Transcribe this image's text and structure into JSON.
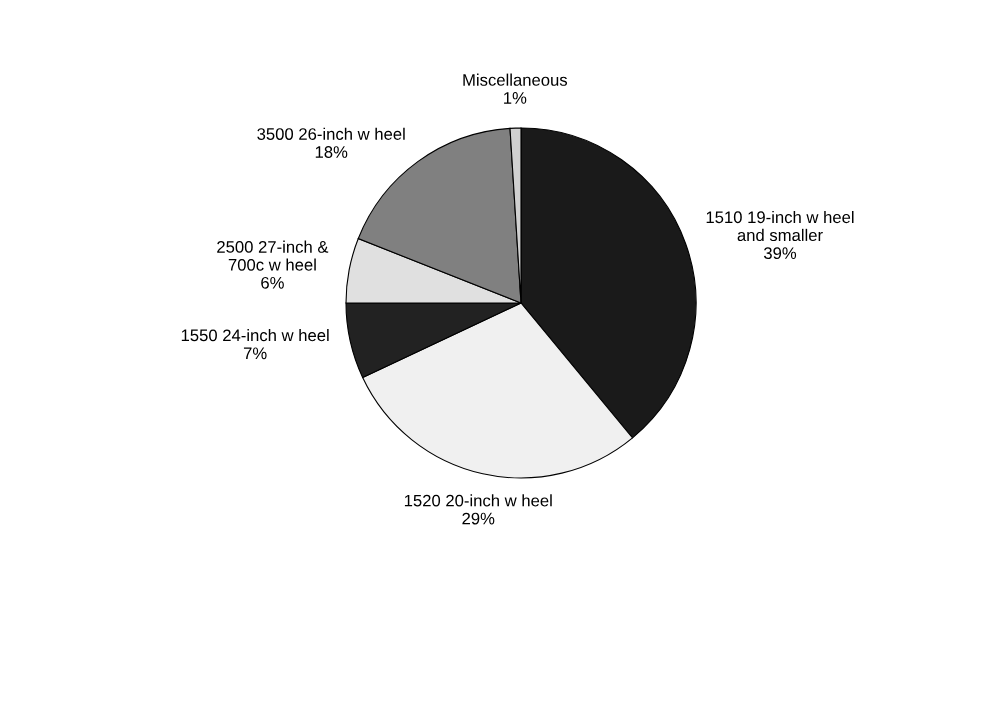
{
  "chart_data": {
    "type": "pie",
    "categories": [
      "1510 19-inch w heel\nand smaller",
      "1520 20-inch w heel",
      "1550 24-inch w heel",
      "2500 27-inch &\n700c w heel",
      "3500 26-inch w heel",
      "Miscellaneous"
    ],
    "values": [
      39,
      29,
      7,
      6,
      18,
      1
    ],
    "colors": [
      "#1a1a1a",
      "#f0f0f0",
      "#222222",
      "#e0e0e0",
      "#808080",
      "#d0d0d0"
    ],
    "value_labels": [
      "39%",
      "29%",
      "7%",
      "6%",
      "18%",
      "1%"
    ]
  }
}
